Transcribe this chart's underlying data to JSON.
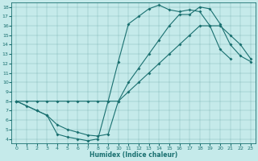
{
  "xlabel": "Humidex (Indice chaleur)",
  "bg_color": "#c5eaea",
  "line_color": "#1a7070",
  "xlim": [
    -0.5,
    23.5
  ],
  "ylim": [
    3.5,
    18.5
  ],
  "xticks": [
    0,
    1,
    2,
    3,
    4,
    5,
    6,
    7,
    8,
    9,
    10,
    11,
    12,
    13,
    14,
    15,
    16,
    17,
    18,
    19,
    20,
    21,
    22,
    23
  ],
  "yticks": [
    4,
    5,
    6,
    7,
    8,
    9,
    10,
    11,
    12,
    13,
    14,
    15,
    16,
    17,
    18
  ],
  "line1_x": [
    0,
    1,
    2,
    3,
    4,
    5,
    6,
    7,
    8,
    9,
    10,
    11,
    12,
    13,
    14,
    15,
    16,
    17,
    18,
    19,
    20,
    21
  ],
  "line1_y": [
    8,
    7.5,
    7.0,
    6.5,
    4.5,
    4.2,
    4.0,
    3.8,
    4.0,
    8.0,
    12.2,
    16.2,
    17.0,
    17.8,
    18.2,
    17.7,
    17.5,
    17.7,
    17.5,
    16.0,
    13.5,
    12.5
  ],
  "line2_x": [
    0,
    1,
    2,
    3,
    4,
    5,
    6,
    7,
    8,
    9,
    10,
    11,
    12,
    13,
    14,
    15,
    16,
    17,
    18,
    19,
    20,
    21,
    22,
    23
  ],
  "line2_y": [
    8,
    8,
    8,
    8,
    8,
    8,
    8,
    8,
    8,
    8,
    8,
    9,
    10,
    11,
    12,
    13,
    14,
    15,
    16,
    16,
    16,
    15,
    14,
    12.5
  ],
  "line3_x": [
    0,
    2,
    3,
    4,
    5,
    6,
    7,
    8,
    9,
    10,
    11,
    12,
    13,
    14,
    15,
    16,
    17,
    18,
    19,
    20,
    21,
    22,
    23
  ],
  "line3_y": [
    8,
    7.0,
    6.5,
    5.5,
    5.0,
    4.7,
    4.4,
    4.3,
    4.5,
    8.0,
    10.0,
    11.5,
    13.0,
    14.5,
    16.0,
    17.2,
    17.2,
    18.0,
    17.8,
    16.2,
    14.0,
    12.8,
    12.2
  ]
}
